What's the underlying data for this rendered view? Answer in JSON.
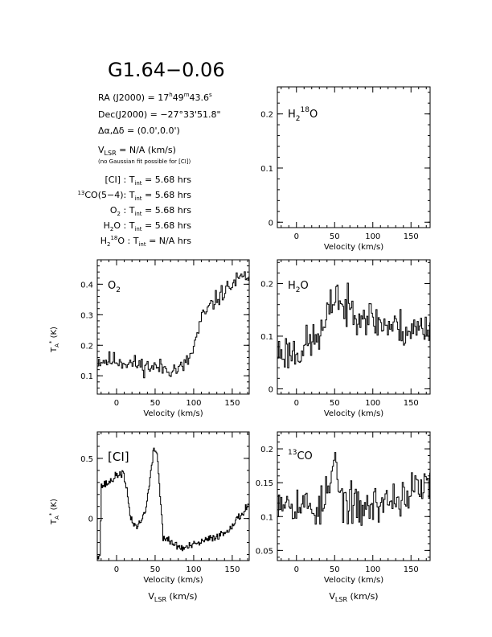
{
  "title": "G1.64−0.06",
  "info": {
    "ra": "RA (J2000) =  17h49m43.6s",
    "dec": "Dec(J2000) = −27°33'51.8\"",
    "offset": "Δα,Δδ = (0.0',0.0')",
    "vlsr": "VLSR  = N/A  (km/s)",
    "note": "(no Gaussian fit possible for [CI])",
    "integrations": [
      {
        "species": "[CI]",
        "text": "[CI] : Tint = 5.68 hrs"
      },
      {
        "species": "13CO(5-4)",
        "text": "13CO(5-4): Tint = 5.68 hrs"
      },
      {
        "species": "O2",
        "text": "O2 : Tint = 5.68 hrs"
      },
      {
        "species": "H2O",
        "text": "H2O : Tint = 5.68 hrs"
      },
      {
        "species": "H218O",
        "text": "H218O : Tint = N/A  hrs"
      }
    ]
  },
  "chart_data": [
    {
      "type": "line",
      "label": "H2 18O",
      "xlabel": "Velocity (km/s)",
      "ylabel": "",
      "xlim": [
        -25,
        175
      ],
      "ylim": [
        -0.01,
        0.25
      ],
      "xticks": [
        0,
        50,
        100,
        150
      ],
      "yticks": [
        0,
        0.1,
        0.2
      ],
      "ytick_labels": [
        "0",
        "0.1",
        "0.2"
      ],
      "series": []
    },
    {
      "type": "line",
      "label": "O2",
      "xlabel": "Velocity (km/s)",
      "ylabel": "TA* (K)",
      "xlim": [
        -25,
        172
      ],
      "ylim": [
        0.04,
        0.48
      ],
      "xticks": [
        0,
        50,
        100,
        150
      ],
      "yticks": [
        0.1,
        0.2,
        0.3,
        0.4
      ],
      "ytick_labels": [
        "0.1",
        "0.2",
        "0.3",
        "0.4"
      ],
      "profile": [
        [
          -25,
          0.15
        ],
        [
          0,
          0.15
        ],
        [
          40,
          0.13
        ],
        [
          80,
          0.12
        ],
        [
          90,
          0.14
        ],
        [
          98,
          0.18
        ],
        [
          110,
          0.29
        ],
        [
          125,
          0.34
        ],
        [
          140,
          0.38
        ],
        [
          155,
          0.41
        ],
        [
          172,
          0.43
        ]
      ],
      "noise": 0.022,
      "step": 1.5,
      "seed": 11
    },
    {
      "type": "line",
      "label": "H2O",
      "xlabel": "Velocity (km/s)",
      "ylabel": "",
      "xlim": [
        -25,
        175
      ],
      "ylim": [
        -0.01,
        0.245
      ],
      "xticks": [
        0,
        50,
        100,
        150
      ],
      "yticks": [
        0,
        0.1,
        0.2
      ],
      "ytick_labels": [
        "0",
        "0.1",
        "0.2"
      ],
      "profile": [
        [
          -25,
          0.07
        ],
        [
          0,
          0.07
        ],
        [
          20,
          0.09
        ],
        [
          35,
          0.11
        ],
        [
          45,
          0.16
        ],
        [
          52,
          0.19
        ],
        [
          60,
          0.15
        ],
        [
          80,
          0.15
        ],
        [
          100,
          0.13
        ],
        [
          120,
          0.12
        ],
        [
          150,
          0.11
        ],
        [
          175,
          0.12
        ]
      ],
      "noise": 0.028,
      "step": 1.5,
      "seed": 23
    },
    {
      "type": "line",
      "label": "[CI]",
      "xlabel": "Velocity (km/s)",
      "xlabel2": "VLSR (km/s)",
      "ylabel": "TA* (K)",
      "xlim": [
        -25,
        172
      ],
      "ylim": [
        -0.35,
        0.72
      ],
      "xticks": [
        0,
        50,
        100,
        150
      ],
      "yticks": [
        0,
        0.5
      ],
      "ytick_labels": [
        "0",
        "0.5"
      ],
      "profile": [
        [
          -25,
          -0.3
        ],
        [
          -22,
          -0.3
        ],
        [
          -20,
          0.27
        ],
        [
          -10,
          0.3
        ],
        [
          0,
          0.36
        ],
        [
          8,
          0.38
        ],
        [
          13,
          0.22
        ],
        [
          18,
          0.0
        ],
        [
          25,
          -0.07
        ],
        [
          32,
          -0.02
        ],
        [
          38,
          0.1
        ],
        [
          43,
          0.33
        ],
        [
          48,
          0.58
        ],
        [
          52,
          0.55
        ],
        [
          56,
          0.2
        ],
        [
          60,
          -0.15
        ],
        [
          70,
          -0.2
        ],
        [
          85,
          -0.25
        ],
        [
          100,
          -0.22
        ],
        [
          120,
          -0.17
        ],
        [
          140,
          -0.12
        ],
        [
          160,
          0.02
        ],
        [
          172,
          0.13
        ]
      ],
      "noise": 0.025,
      "step": 1.0,
      "seed": 37
    },
    {
      "type": "line",
      "label": "13CO",
      "xlabel": "Velocity (km/s)",
      "xlabel2": "VLSR (km/s)",
      "ylabel": "",
      "xlim": [
        -25,
        175
      ],
      "ylim": [
        0.035,
        0.225
      ],
      "xticks": [
        0,
        50,
        100,
        150
      ],
      "yticks": [
        0.05,
        0.1,
        0.15,
        0.2
      ],
      "ytick_labels": [
        "0.05",
        "0.1",
        "0.15",
        "0.2"
      ],
      "profile": [
        [
          -25,
          0.13
        ],
        [
          0,
          0.12
        ],
        [
          30,
          0.11
        ],
        [
          45,
          0.15
        ],
        [
          50,
          0.19
        ],
        [
          55,
          0.13
        ],
        [
          80,
          0.11
        ],
        [
          110,
          0.12
        ],
        [
          140,
          0.13
        ],
        [
          175,
          0.15
        ]
      ],
      "noise": 0.022,
      "step": 1.5,
      "seed": 53
    }
  ]
}
